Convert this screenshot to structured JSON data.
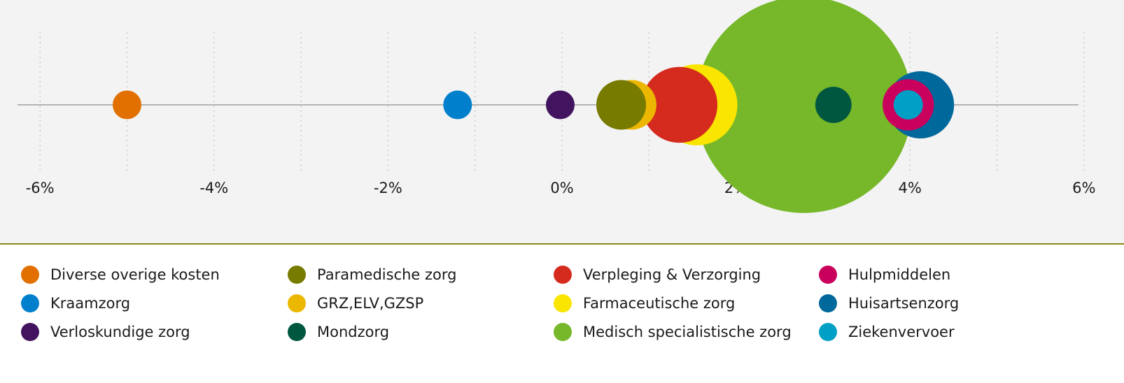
{
  "chart_data": {
    "type": "scatter",
    "title": "",
    "xlabel": "",
    "ylabel": "",
    "xlim": [
      -6.25,
      6.25
    ],
    "x_ticks": [
      "-6%",
      "-4%",
      "-2%",
      "0%",
      "2%",
      "4%",
      "6%"
    ],
    "x_tick_values": [
      -6,
      -4,
      -2,
      0,
      2,
      4,
      6
    ],
    "grid": "vertical dotted",
    "legend_position": "bottom",
    "series": [
      {
        "name": "Diverse overige kosten",
        "x": -5.0,
        "size": 1.0,
        "color": "#e17000"
      },
      {
        "name": "Kraamzorg",
        "x": -1.2,
        "size": 1.0,
        "color": "#0080cc"
      },
      {
        "name": "Verloskundige zorg",
        "x": -0.02,
        "size": 1.0,
        "color": "#42145f"
      },
      {
        "name": "GRZ,ELV,GZSP",
        "x": 0.8,
        "size": 3.0,
        "color": "#ebb700"
      },
      {
        "name": "Paramedische zorg",
        "x": 0.68,
        "size": 3.0,
        "color": "#777b00"
      },
      {
        "name": "Farmaceutische zorg",
        "x": 1.55,
        "size": 8.0,
        "color": "#f9e500"
      },
      {
        "name": "Verpleging & Verzorging",
        "x": 1.35,
        "size": 7.0,
        "color": "#d52b1e"
      },
      {
        "name": "Medisch specialistische zorg",
        "x": 2.78,
        "size": 57.0,
        "color": "#76b82a"
      },
      {
        "name": "Huisartsenzorg",
        "x": 4.12,
        "size": 5.5,
        "color": "#01689b"
      },
      {
        "name": "Hulpmiddelen",
        "x": 3.98,
        "size": 3.2,
        "color": "#ca005d"
      },
      {
        "name": "Mondzorg",
        "x": 3.12,
        "size": 1.6,
        "color": "#00573f"
      },
      {
        "name": "Ziekenvervoer",
        "x": 3.98,
        "size": 1.05,
        "color": "#00a0c6"
      }
    ]
  },
  "legend": {
    "columns": [
      [
        {
          "label": "Diverse overige kosten",
          "color": "#e17000"
        },
        {
          "label": "Kraamzorg",
          "color": "#0080cc"
        },
        {
          "label": "Verloskundige zorg",
          "color": "#42145f"
        }
      ],
      [
        {
          "label": "Paramedische zorg",
          "color": "#777b00"
        },
        {
          "label": "GRZ,ELV,GZSP",
          "color": "#ebb700"
        },
        {
          "label": "Mondzorg",
          "color": "#00573f"
        }
      ],
      [
        {
          "label": "Verpleging & Verzorging",
          "color": "#d52b1e"
        },
        {
          "label": "Farmaceutische zorg",
          "color": "#f9e500"
        },
        {
          "label": "Medisch specialistische zorg",
          "color": "#76b82a"
        }
      ],
      [
        {
          "label": "Hulpmiddelen",
          "color": "#ca005d"
        },
        {
          "label": "Huisartsenzorg",
          "color": "#01689b"
        },
        {
          "label": "Ziekenvervoer",
          "color": "#00a0c6"
        }
      ]
    ]
  }
}
